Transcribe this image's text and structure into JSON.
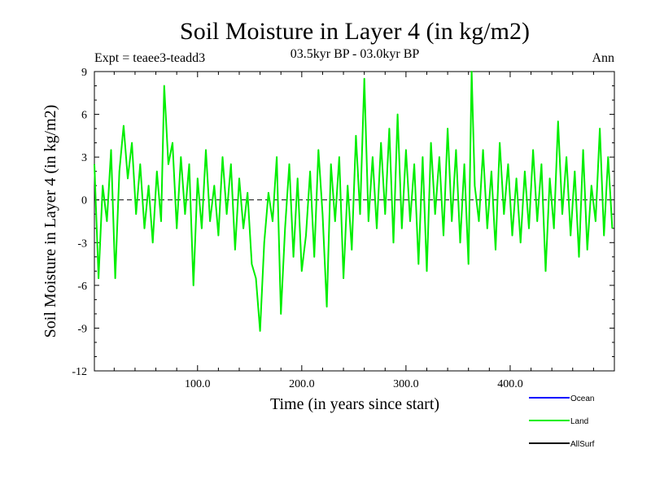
{
  "chart_data": {
    "type": "line",
    "title": "Soil Moisture in Layer 4 (in kg/m2)",
    "subtitle": "03.5kyr BP - 03.0kyr BP",
    "experiment": "Expt = teaee3-teadd3",
    "period": "Ann",
    "xlabel": "Time (in years since start)",
    "ylabel": "Soil Moisture in Layer 4 (in kg/m2)",
    "xlim": [
      1,
      500
    ],
    "ylim": [
      -12,
      9
    ],
    "xticks": [
      100,
      200,
      300,
      400
    ],
    "xtick_labels": [
      "100.0",
      "200.0",
      "300.0",
      "400.0"
    ],
    "yticks": [
      -12,
      -9,
      -6,
      -3,
      0,
      3,
      6,
      9
    ],
    "ytick_labels": [
      "-12",
      "-9",
      "-6",
      "-3",
      "0",
      "3",
      "6",
      "9"
    ],
    "zero_line": true,
    "legend": [
      {
        "name": "Ocean",
        "color": "#0000ff"
      },
      {
        "name": "Land",
        "color": "#00ee00"
      },
      {
        "name": "AllSurf",
        "color": "#000000"
      }
    ],
    "series": [
      {
        "name": "Land",
        "color": "#00ee00",
        "x": [
          1,
          5,
          9,
          13,
          17,
          21,
          25,
          29,
          33,
          37,
          41,
          45,
          49,
          53,
          57,
          61,
          65,
          68,
          72,
          76,
          80,
          84,
          88,
          92,
          96,
          100,
          104,
          108,
          112,
          116,
          120,
          124,
          128,
          132,
          136,
          140,
          144,
          148,
          152,
          156,
          160,
          164,
          168,
          172,
          176,
          180,
          184,
          188,
          192,
          196,
          200,
          204,
          208,
          212,
          216,
          220,
          224,
          228,
          232,
          236,
          240,
          244,
          248,
          252,
          256,
          260,
          264,
          268,
          272,
          276,
          280,
          284,
          288,
          292,
          296,
          300,
          304,
          308,
          312,
          316,
          320,
          324,
          328,
          332,
          336,
          340,
          344,
          348,
          352,
          356,
          360,
          363,
          366,
          370,
          374,
          378,
          382,
          386,
          390,
          394,
          398,
          402,
          406,
          410,
          414,
          418,
          422,
          426,
          430,
          434,
          438,
          442,
          446,
          450,
          454,
          458,
          462,
          466,
          470,
          474,
          478,
          482,
          486,
          490,
          494,
          498
        ],
        "y": [
          2.5,
          -5.5,
          1.0,
          -1.5,
          3.5,
          -5.5,
          2.0,
          5.2,
          1.5,
          4.0,
          -1.0,
          2.5,
          -2.0,
          1.0,
          -3.0,
          2.0,
          -1.5,
          8.0,
          2.5,
          4.0,
          -2.0,
          3.0,
          -1.0,
          2.5,
          -6.0,
          1.5,
          -2.0,
          3.5,
          -1.5,
          1.0,
          -2.5,
          3.0,
          -1.0,
          2.5,
          -3.5,
          1.5,
          -2.0,
          0.5,
          -4.5,
          -5.5,
          -9.2,
          -3.0,
          0.5,
          -1.5,
          3.0,
          -8.0,
          -2.0,
          2.5,
          -4.0,
          1.5,
          -5.0,
          -2.5,
          2.0,
          -4.0,
          3.5,
          -1.0,
          -7.5,
          2.5,
          -1.5,
          3.0,
          -5.5,
          1.0,
          -3.5,
          4.5,
          -1.0,
          8.5,
          -1.5,
          3.0,
          -2.0,
          4.0,
          -1.0,
          5.0,
          -3.0,
          6.0,
          -2.0,
          3.5,
          -1.5,
          2.5,
          -4.5,
          3.0,
          -5.0,
          4.0,
          -1.0,
          3.0,
          -2.5,
          5.0,
          -1.5,
          3.5,
          -3.0,
          2.5,
          -4.5,
          9.0,
          1.0,
          -1.5,
          3.5,
          -2.0,
          2.0,
          -3.5,
          4.0,
          -1.0,
          2.5,
          -2.5,
          1.5,
          -3.0,
          2.0,
          -2.0,
          3.5,
          -1.5,
          2.5,
          -5.0,
          1.5,
          -2.0,
          5.5,
          -1.0,
          3.0,
          -2.5,
          2.0,
          -4.0,
          3.5,
          -3.5,
          1.0,
          -1.5,
          5.0,
          -2.5,
          3.0,
          -2.0
        ]
      }
    ]
  }
}
